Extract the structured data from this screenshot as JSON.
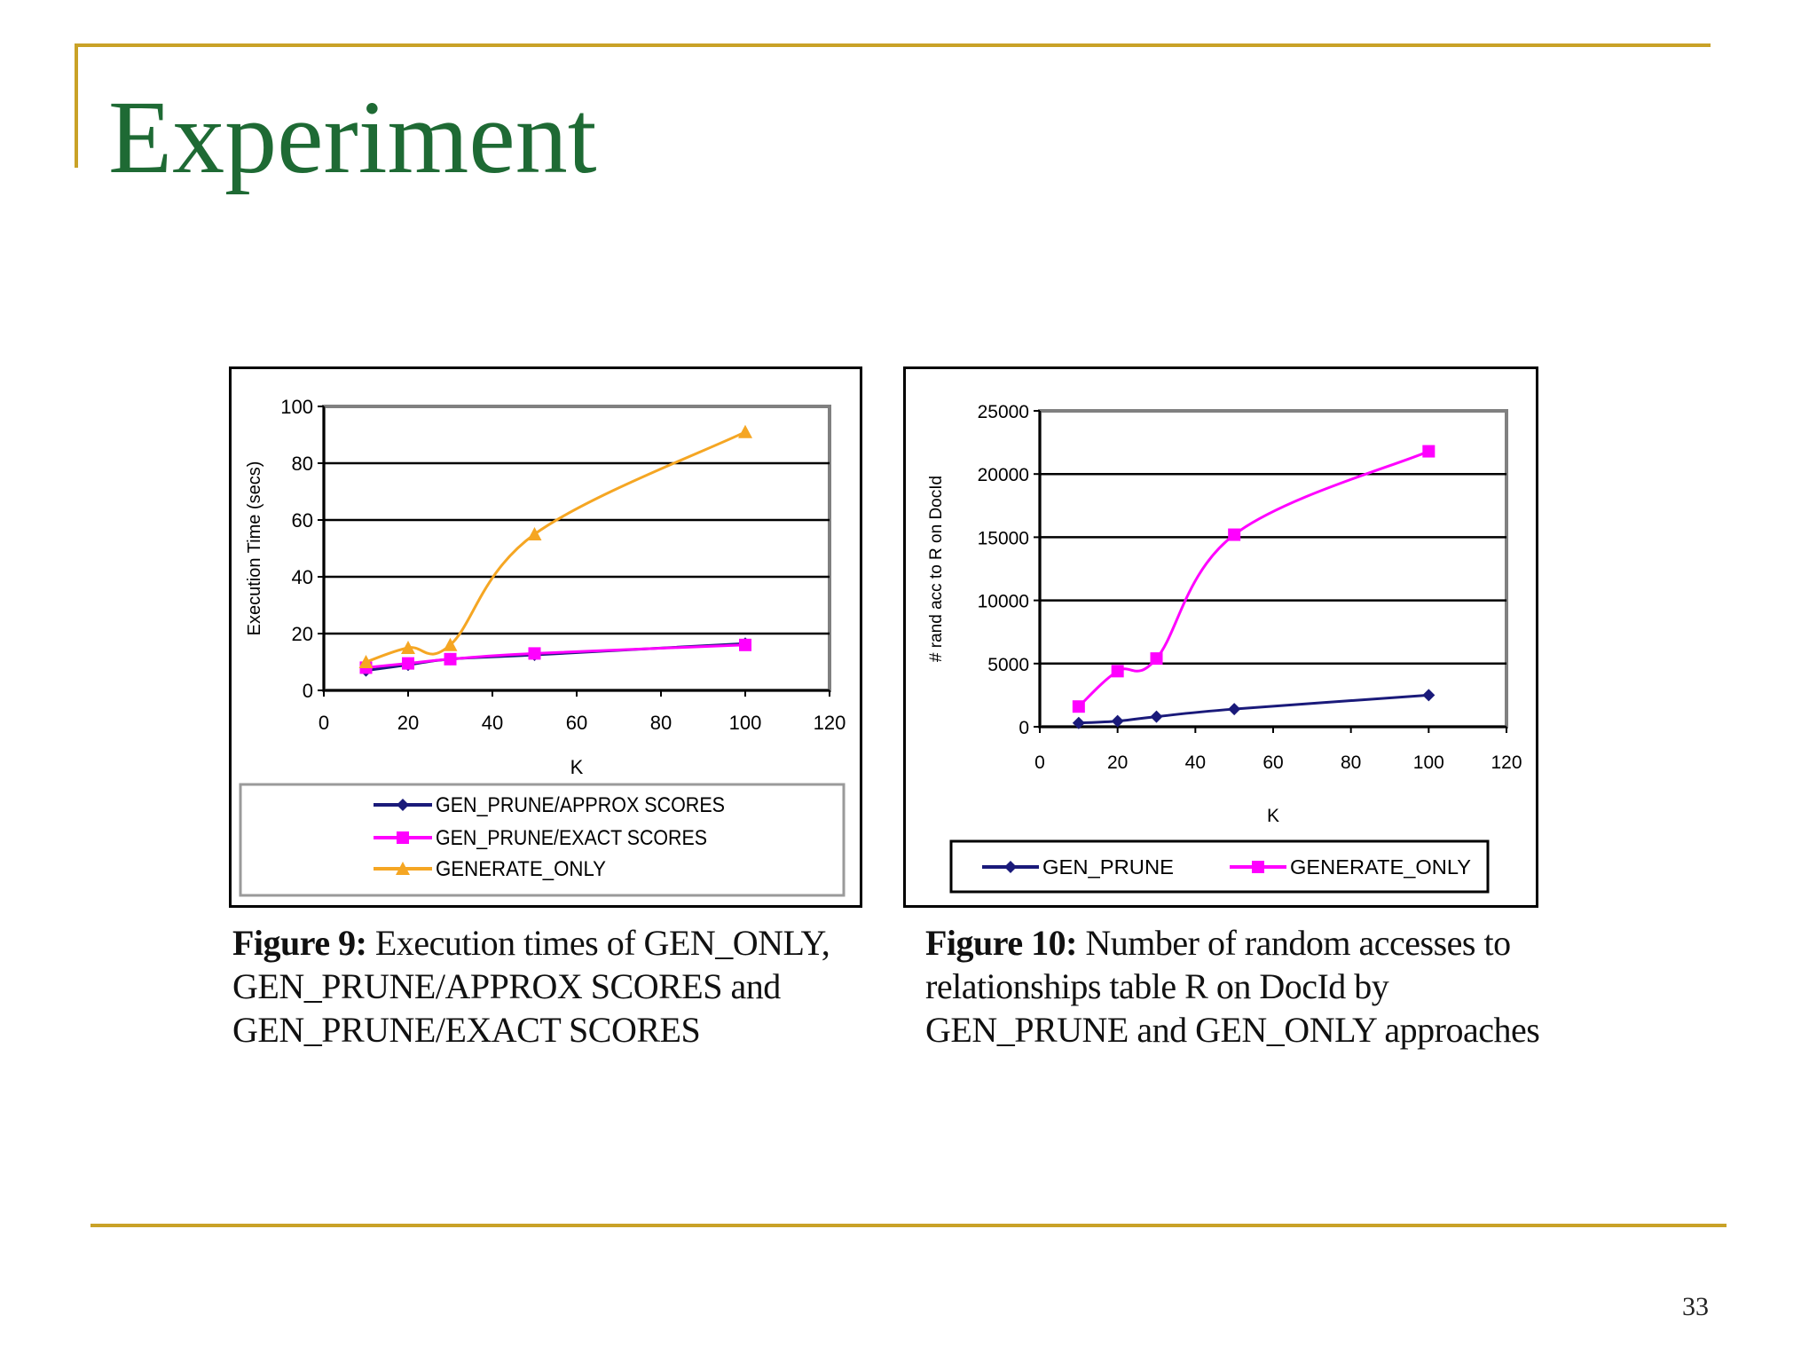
{
  "slide": {
    "title": "Experiment",
    "page_number": "33"
  },
  "colors": {
    "rule": "#c9a227",
    "title": "#1e6a34",
    "navy": "#1a1a7a",
    "magenta": "#ff00ff",
    "orange": "#f5a623",
    "plot_border": "#808080"
  },
  "captions": {
    "fig9": {
      "label": "Figure 9:",
      "lines": [
        "Execution times of GEN_ONLY,",
        "GEN_PRUNE/APPROX SCORES and",
        "GEN_PRUNE/EXACT SCORES"
      ]
    },
    "fig10": {
      "label": "Figure 10:",
      "lines": [
        "Number of random accesses to",
        "relationships table R on DocId by",
        "GEN_PRUNE and GEN_ONLY approaches"
      ]
    }
  },
  "chart_data": [
    {
      "type": "line",
      "title": "",
      "xlabel": "K",
      "ylabel": "Execution Time (secs)",
      "xlim": [
        0,
        120
      ],
      "ylim": [
        0,
        100
      ],
      "xticks": [
        0,
        20,
        40,
        60,
        80,
        100,
        120
      ],
      "yticks": [
        0,
        20,
        40,
        60,
        80,
        100
      ],
      "grid": "horizontal",
      "legend_position": "bottom",
      "series": [
        {
          "name": "GEN_PRUNE/APPROX SCORES",
          "marker": "diamond",
          "color": "#1a1a7a",
          "x": [
            10,
            20,
            30,
            50,
            100
          ],
          "values": [
            7,
            9,
            11,
            12.5,
            16.5
          ]
        },
        {
          "name": "GEN_PRUNE/EXACT SCORES",
          "marker": "square",
          "color": "#ff00ff",
          "x": [
            10,
            20,
            30,
            50,
            100
          ],
          "values": [
            8,
            9.5,
            11,
            13,
            16
          ]
        },
        {
          "name": "GENERATE_ONLY",
          "marker": "triangle",
          "color": "#f5a623",
          "x": [
            10,
            20,
            30,
            50,
            100
          ],
          "values": [
            10,
            15,
            16,
            55,
            91
          ]
        }
      ]
    },
    {
      "type": "line",
      "title": "",
      "xlabel": "K",
      "ylabel": "# rand acc to R on DocId",
      "xlim": [
        0,
        120
      ],
      "ylim": [
        0,
        25000
      ],
      "xticks": [
        0,
        20,
        40,
        60,
        80,
        100,
        120
      ],
      "yticks": [
        0,
        5000,
        10000,
        15000,
        20000,
        25000
      ],
      "grid": "horizontal",
      "legend_position": "bottom",
      "series": [
        {
          "name": "GEN_PRUNE",
          "marker": "diamond",
          "color": "#1a1a7a",
          "x": [
            10,
            20,
            30,
            50,
            100
          ],
          "values": [
            300,
            450,
            800,
            1400,
            2500
          ]
        },
        {
          "name": "GENERATE_ONLY",
          "marker": "square",
          "color": "#ff00ff",
          "x": [
            10,
            20,
            30,
            50,
            100
          ],
          "values": [
            1600,
            4400,
            5400,
            15200,
            21800
          ]
        }
      ]
    }
  ]
}
